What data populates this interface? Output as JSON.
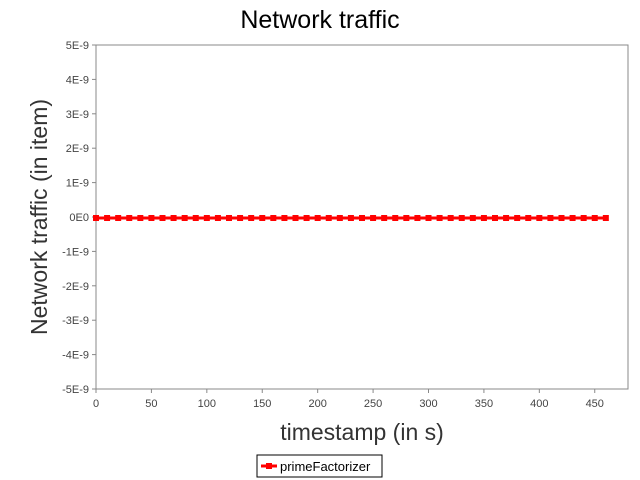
{
  "chart_data": {
    "type": "line",
    "title": "Network traffic",
    "xlabel": "timestamp (in s)",
    "ylabel": "Network traffic (in item)",
    "xlim": [
      0,
      480
    ],
    "ylim": [
      -5e-09,
      5e-09
    ],
    "x_ticks": [
      0,
      50,
      100,
      150,
      200,
      250,
      300,
      350,
      400,
      450
    ],
    "y_ticks": [
      5e-09,
      4e-09,
      3e-09,
      2e-09,
      1e-09,
      0,
      -1e-09,
      -2e-09,
      -3e-09,
      -4e-09,
      -5e-09
    ],
    "x_tick_labels": [
      "0",
      "50",
      "100",
      "150",
      "200",
      "250",
      "300",
      "350",
      "400",
      "450"
    ],
    "y_tick_labels": [
      "5E-9",
      "4E-9",
      "3E-9",
      "2E-9",
      "1E-9",
      "0E0",
      "-1E-9",
      "-2E-9",
      "-3E-9",
      "-4E-9",
      "-5E-9"
    ],
    "legend_position": "bottom-center",
    "grid": false,
    "series": [
      {
        "name": "primeFactorizer",
        "color": "#ff0000",
        "marker": "square",
        "x": [
          0,
          10,
          20,
          30,
          40,
          50,
          60,
          70,
          80,
          90,
          100,
          110,
          120,
          130,
          140,
          150,
          160,
          170,
          180,
          190,
          200,
          210,
          220,
          230,
          240,
          250,
          260,
          270,
          280,
          290,
          300,
          310,
          320,
          330,
          340,
          350,
          360,
          370,
          380,
          390,
          400,
          410,
          420,
          430,
          440,
          450,
          460
        ],
        "y": [
          0,
          0,
          0,
          0,
          0,
          0,
          0,
          0,
          0,
          0,
          0,
          0,
          0,
          0,
          0,
          0,
          0,
          0,
          0,
          0,
          0,
          0,
          0,
          0,
          0,
          0,
          0,
          0,
          0,
          0,
          0,
          0,
          0,
          0,
          0,
          0,
          0,
          0,
          0,
          0,
          0,
          0,
          0,
          0,
          0,
          0,
          0
        ]
      }
    ]
  }
}
